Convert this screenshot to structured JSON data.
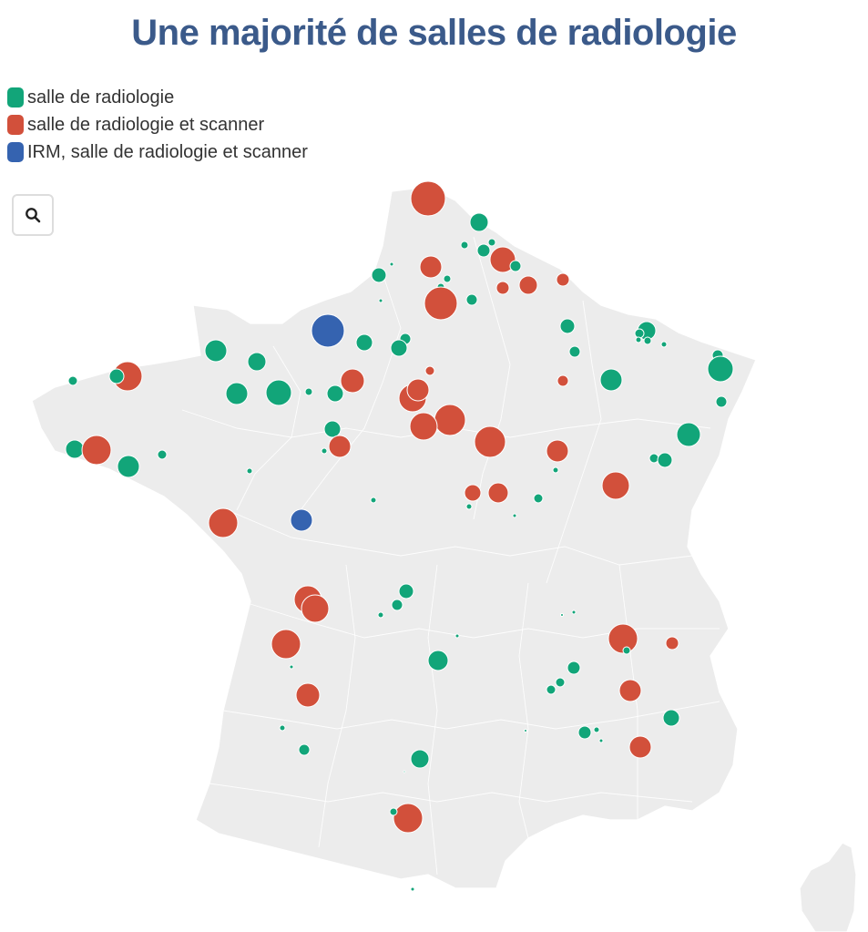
{
  "title": "Une majorité de salles de radiologie",
  "legend": [
    {
      "label": "salle de radiologie",
      "color": "#12a579"
    },
    {
      "label": "salle de radiologie et scanner",
      "color": "#d2503b"
    },
    {
      "label": "IRM, salle de radiologie et scanner",
      "color": "#3563b0"
    }
  ],
  "search": {
    "icon": "search-icon"
  },
  "colors": {
    "map_fill": "#ececec",
    "border": "#ffffff",
    "title": "#3b5a8a"
  }
}
